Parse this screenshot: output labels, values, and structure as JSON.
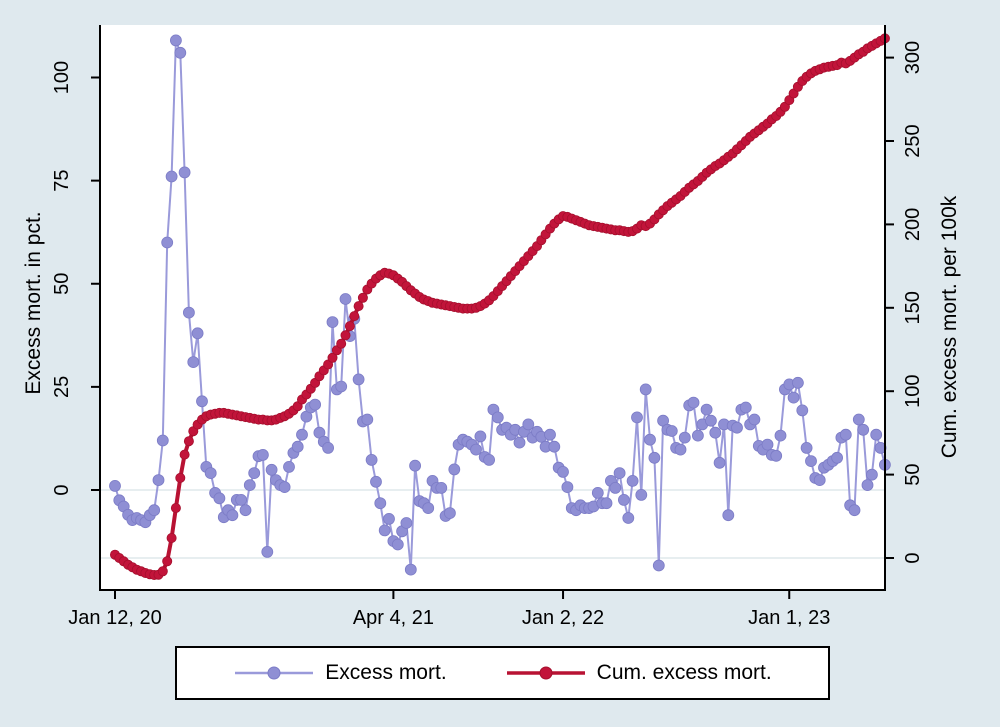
{
  "figure": {
    "background_color": "#dfe9ee",
    "plot_background": "#ffffff",
    "axis_color": "#000000",
    "gridline_color": "#dfe8ec"
  },
  "chart_data": {
    "type": "line",
    "title": "",
    "x_axis": {
      "tick_labels": [
        "Jan 12, 20",
        "Apr 4, 21",
        "Jan 2, 22",
        "Jan 1, 23"
      ],
      "tick_weeks": [
        0,
        64,
        103,
        155
      ],
      "unit": "weekly observations starting Jan 12, 2020"
    },
    "y_axis_left": {
      "label": "Excess mort. in pct.",
      "ticks": [
        0,
        25,
        50,
        75,
        100
      ],
      "range": [
        -22,
        112
      ],
      "gridline_at": 0
    },
    "y_axis_right": {
      "label": "Cum. excess mort. per 100k",
      "ticks": [
        0,
        50,
        100,
        150,
        200,
        250,
        300
      ],
      "range": [
        -14,
        318
      ],
      "gridline_at": 0
    },
    "legend": {
      "position": "bottom-center",
      "entries": [
        "Excess mort.",
        "Cum. excess mort."
      ]
    },
    "series": [
      {
        "name": "Excess mort.",
        "axis": "left",
        "color": "#8f8fd4",
        "line_color": "#9a9ada",
        "marker_edge": "#7c7cc6",
        "marker_radius": 5.5,
        "line_width": 2,
        "values": [
          1,
          -2.5,
          -4,
          -6,
          -7.3,
          -6.8,
          -7.3,
          -7.8,
          -6.1,
          -4.9,
          2.4,
          12,
          60,
          76,
          109,
          106,
          77,
          43,
          31,
          38,
          21.5,
          5.6,
          4.1,
          -0.7,
          -2,
          -6.6,
          -4.9,
          -6.1,
          -2.4,
          -2.4,
          -4.9,
          1.2,
          4.1,
          8.2,
          8.5,
          -15,
          4.9,
          2.4,
          1.2,
          0.7,
          5.6,
          9,
          10.5,
          13.4,
          17.8,
          20,
          20.7,
          13.9,
          11.7,
          10.2,
          40.7,
          24.4,
          25.1,
          46.3,
          37.3,
          41.5,
          26.8,
          16.6,
          17.1,
          7.3,
          2,
          -3.2,
          -9.8,
          -7,
          -12.4,
          -13.2,
          -10,
          -8,
          -19.3,
          5.9,
          -2.7,
          -3.2,
          -4.4,
          2.2,
          0.5,
          0.5,
          -6.3,
          -5.6,
          5,
          11,
          12.2,
          11.7,
          11,
          9.8,
          13,
          8,
          7.3,
          19.5,
          17.6,
          14.6,
          15.1,
          13.4,
          14.6,
          11.5,
          14.1,
          15.9,
          12.7,
          14.1,
          12.9,
          10.5,
          13.4,
          10.5,
          5.4,
          4.4,
          0.7,
          -4.4,
          -4.9,
          -3.7,
          -4.4,
          -4.4,
          -4,
          -0.7,
          -3.2,
          -3.2,
          2.2,
          0.5,
          4.1,
          -2.4,
          -6.8,
          2.2,
          17.6,
          -1.2,
          24.4,
          12.2,
          7.8,
          -18.3,
          16.8,
          14.6,
          14.3,
          10.2,
          9.8,
          12.7,
          20.5,
          21.2,
          13.2,
          15.9,
          19.5,
          16.8,
          13.9,
          6.6,
          15.9,
          -6.1,
          15.6,
          15.1,
          19.5,
          20,
          15.9,
          17.1,
          10.7,
          9.8,
          11,
          8.5,
          8.3,
          13.2,
          24.4,
          25.6,
          22.4,
          26,
          19.3,
          10.2,
          7,
          2.9,
          2.4,
          5.4,
          6.1,
          7,
          7.8,
          12.7,
          13.4,
          -3.7,
          -4.9,
          17.1,
          14.6,
          1.2,
          3.7,
          13.4,
          10.2,
          6.1
        ]
      },
      {
        "name": "Cum. excess mort.",
        "axis": "right",
        "color": "#c2143a",
        "line_color": "#b81233",
        "marker_edge": "#a50f2d",
        "marker_radius": 4.6,
        "line_width": 4,
        "values": [
          2,
          0,
          -2,
          -4,
          -5.5,
          -7,
          -8,
          -9,
          -9.7,
          -10.2,
          -10,
          -8,
          -2,
          12,
          30,
          48,
          62,
          70,
          76,
          80,
          83,
          85,
          86,
          86.5,
          87,
          87,
          86.5,
          86,
          85.5,
          85,
          84.5,
          84,
          83.5,
          83,
          83,
          82.5,
          82.5,
          83,
          84,
          85,
          86.5,
          88.5,
          91,
          95,
          98,
          101.5,
          105,
          109,
          112.5,
          116,
          120,
          124.5,
          128.5,
          133.5,
          139,
          145,
          151,
          156,
          161,
          164.5,
          167.5,
          169.5,
          171,
          170.5,
          169.5,
          167.5,
          165.5,
          163,
          160.5,
          158.5,
          156.5,
          155,
          154,
          153,
          152.5,
          152,
          151.5,
          151,
          150.5,
          150,
          149.5,
          149.5,
          149.5,
          150,
          151,
          152.5,
          154.5,
          157,
          160,
          163,
          166,
          169,
          172,
          175,
          178,
          181,
          184,
          187,
          190.5,
          194,
          197.5,
          200.5,
          203,
          205,
          204.5,
          203.5,
          202.5,
          201.5,
          200.5,
          199.5,
          199,
          198.5,
          198,
          197.5,
          197,
          196.5,
          196.5,
          196,
          195.5,
          196,
          197.5,
          199.5,
          199,
          200.5,
          203,
          206,
          208.5,
          211,
          213,
          215,
          217,
          219.5,
          222,
          224,
          226,
          228.5,
          231,
          233,
          235,
          236.5,
          238.5,
          240.5,
          242.5,
          245,
          247.5,
          250,
          252.5,
          254.5,
          256.5,
          258.5,
          260.5,
          263,
          265,
          267.5,
          270.5,
          274.5,
          278.5,
          282.5,
          286,
          288.5,
          290.5,
          292,
          293,
          294,
          294.5,
          295,
          295.5,
          297,
          296.5,
          298,
          300,
          302,
          303.5,
          305.5,
          307,
          308.5,
          310,
          311.5
        ]
      }
    ]
  }
}
